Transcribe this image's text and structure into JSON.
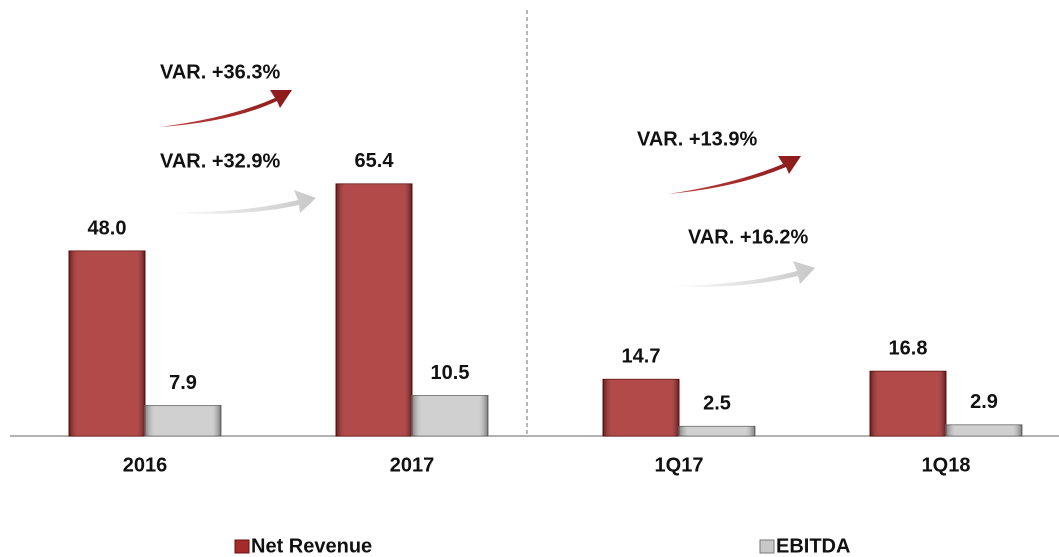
{
  "chart_data": {
    "type": "bar",
    "categories": [
      "2016",
      "2017",
      "1Q17",
      "1Q18"
    ],
    "series": [
      {
        "name": "Net Revenue",
        "color": "#a52a2a",
        "values": [
          48.0,
          65.4,
          14.7,
          16.8
        ],
        "value_labels": [
          "48.0",
          "65.4",
          "14.7",
          "16.8"
        ]
      },
      {
        "name": "EBITDA",
        "color": "#c8c8c8",
        "values": [
          7.9,
          10.5,
          2.5,
          2.9
        ],
        "value_labels": [
          "7.9",
          "10.5",
          "2.5",
          "2.9"
        ]
      }
    ],
    "ylim": [
      0,
      110
    ],
    "annotations": [
      "VAR. +36.3%",
      "VAR. +32.9%",
      "VAR. +13.9%",
      "VAR. +16.2%"
    ]
  }
}
